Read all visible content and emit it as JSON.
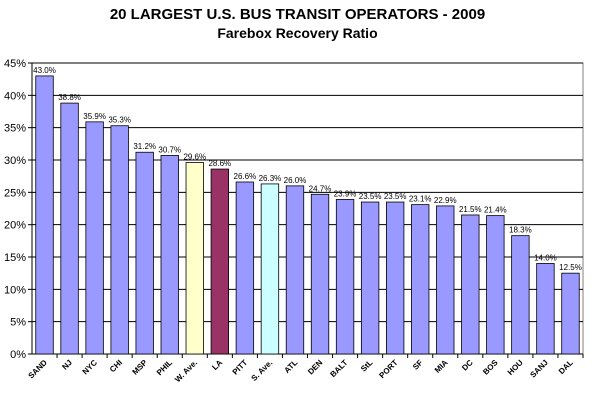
{
  "chart_data": {
    "type": "bar",
    "title": "20 LARGEST U.S. BUS TRANSIT OPERATORS - 2009",
    "subtitle": "Farebox Recovery Ratio",
    "xlabel": "",
    "ylabel": "",
    "ylim": [
      0,
      45
    ],
    "ytick_step": 5,
    "yticks": [
      "0%",
      "5%",
      "10%",
      "15%",
      "20%",
      "25%",
      "30%",
      "35%",
      "40%",
      "45%"
    ],
    "grid": true,
    "legend": "none",
    "categories": [
      "SAND",
      "NJ",
      "NYC",
      "CHI",
      "MSP",
      "PHIL",
      "W. Ave.",
      "LA",
      "PITT",
      "S. Ave.",
      "ATL",
      "DEN",
      "BALT",
      "StL",
      "PORT",
      "SF",
      "MIA",
      "DC",
      "BOS",
      "HOU",
      "SANJ",
      "DAL"
    ],
    "values": [
      43.0,
      38.8,
      35.9,
      35.3,
      31.2,
      30.7,
      29.6,
      28.6,
      26.6,
      26.3,
      26.0,
      24.7,
      23.9,
      23.5,
      23.5,
      23.1,
      22.9,
      21.5,
      21.4,
      18.3,
      14.0,
      12.5
    ],
    "value_labels": [
      "43.0%",
      "38.8%",
      "35.9%",
      "35.3%",
      "31.2%",
      "30.7%",
      "29.6%",
      "28.6%",
      "26.6%",
      "26.3%",
      "26.0%",
      "24.7%",
      "23.9%",
      "23.5%",
      "23.5%",
      "23.1%",
      "22.9%",
      "21.5%",
      "21.4%",
      "18.3%",
      "14.0%",
      "12.5%"
    ],
    "colors": {
      "default": "#9999ff",
      "W. Ave.": "#ffffcc",
      "LA": "#993366",
      "S. Ave.": "#ccffff",
      "plot_background": "#ffffff",
      "gridline": "#000000"
    }
  }
}
